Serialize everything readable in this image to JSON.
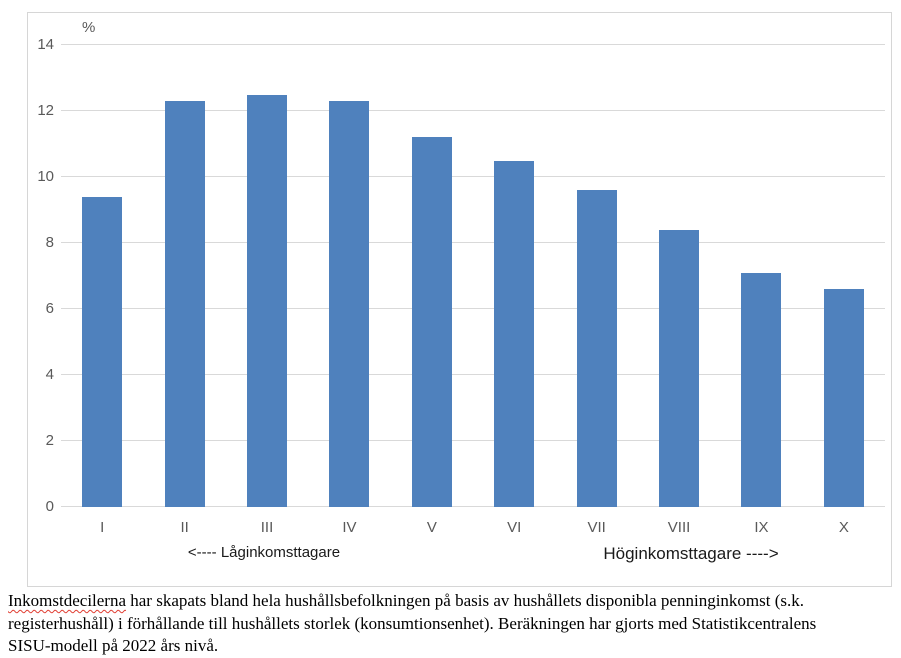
{
  "chart_data": {
    "type": "bar",
    "title": "",
    "unit_label": "%",
    "categories": [
      "I",
      "II",
      "III",
      "IV",
      "V",
      "VI",
      "VII",
      "VIII",
      "IX",
      "X"
    ],
    "values": [
      9.4,
      12.3,
      12.5,
      12.3,
      11.2,
      10.5,
      9.6,
      8.4,
      7.1,
      6.6
    ],
    "xlabel": "",
    "ylabel": "%",
    "ylim": [
      0,
      14
    ],
    "yticks": [
      0,
      2,
      4,
      6,
      8,
      10,
      12,
      14
    ],
    "grid": "horizontal",
    "legend": "none",
    "bar_color": "#4F81BD",
    "gridline_color": "#D9D9D9",
    "tick_label_color": "#595959",
    "x_direction_labels": {
      "left": "<---- Låginkomsttagare",
      "right": "Höginkomsttagare ---->"
    }
  },
  "caption": {
    "line1_word": "Inkomstdecilerna",
    "line1_rest": " har skapats bland hela hushållsbefolkningen på basis av hushållets disponibla penninginkomst (s.k.",
    "line2": "registerhushåll) i förhållande till hushållets storlek (konsumtionsenhet). Beräkningen har gjorts med Statistikcentralens",
    "line3": "SISU-modell på 2022 års nivå."
  }
}
